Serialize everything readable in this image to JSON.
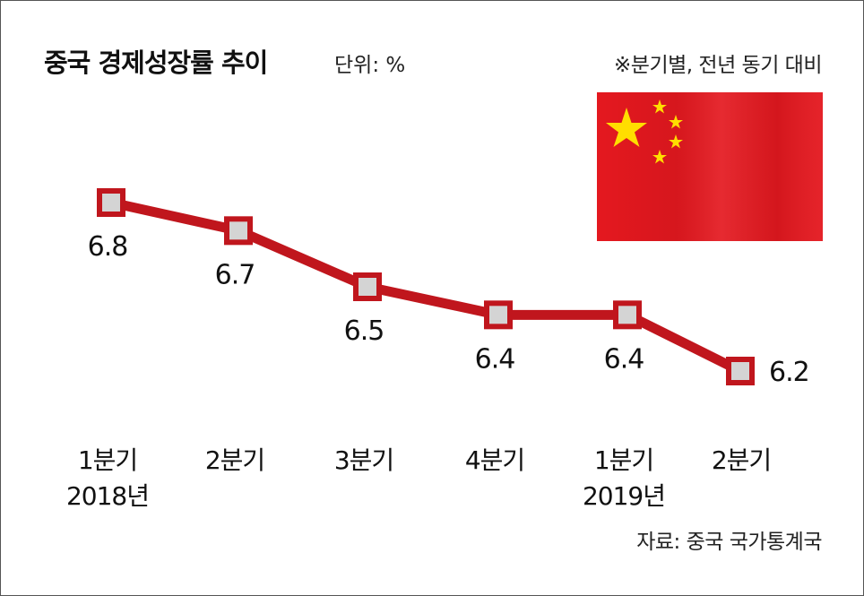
{
  "header": {
    "title": "중국 경제성장률 추이",
    "unit": "단위: %",
    "note": "※분기별, 전년 동기 대비"
  },
  "footer": {
    "source": "자료: 중국 국가통계국"
  },
  "colors": {
    "line": "#c0161d",
    "marker_fill": "#d4d4d4",
    "flag_red": "#e4181f",
    "flag_star": "#ffde00"
  },
  "chart_data": {
    "type": "line",
    "categories": [
      [
        "1분기",
        "2018년"
      ],
      [
        "2분기",
        ""
      ],
      [
        "3분기",
        ""
      ],
      [
        "4분기",
        ""
      ],
      [
        "1분기",
        "2019년"
      ],
      [
        "2분기",
        ""
      ]
    ],
    "values": [
      6.8,
      6.7,
      6.5,
      6.4,
      6.4,
      6.2
    ],
    "data_labels": [
      "6.8",
      "6.7",
      "6.5",
      "6.4",
      "6.4",
      "6.2"
    ],
    "title": "중국 경제성장률 추이",
    "ylim": [
      6.0,
      7.0
    ],
    "grid": false,
    "legend": "none"
  }
}
